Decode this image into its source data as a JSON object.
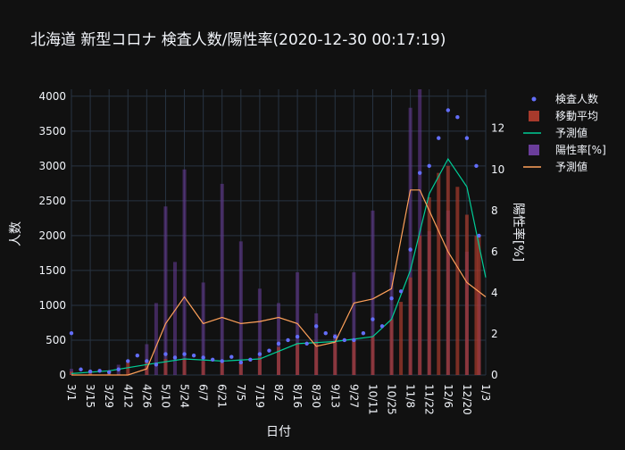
{
  "chart_data": {
    "type": "bar",
    "title": "北海道 新型コロナ 検査人数/陽性率(2020-12-30 00:17:19)",
    "xlabel": "日付",
    "ylabel": "人数",
    "y2label": "陽性率[%]",
    "ylim": [
      0,
      4100
    ],
    "y2lim": [
      0,
      13.9
    ],
    "yticks": [
      0,
      500,
      1000,
      1500,
      2000,
      2500,
      3000,
      3500,
      4000
    ],
    "y2ticks": [
      0,
      2,
      4,
      6,
      8,
      10,
      12
    ],
    "x_start_date": "2020-03-01",
    "x_end_date": "2021-01-03",
    "xticks": [
      "3/1",
      "3/15",
      "3/29",
      "4/12",
      "4/26",
      "5/10",
      "5/24",
      "6/7",
      "6/21",
      "7/5",
      "7/19",
      "8/2",
      "8/16",
      "8/30",
      "9/13",
      "9/27",
      "10/11",
      "10/25",
      "11/8",
      "11/22",
      "12/6",
      "12/20",
      "1/3"
    ],
    "grid": true,
    "legend_position": "right",
    "colors": {
      "test_points": "#636efa",
      "moving_avg": "#a83a2c",
      "fit_tests": "#00cc96",
      "positivity": "#6a3d9a",
      "fit_positivity": "#ffa15a",
      "grid": "#283442",
      "background": "#111111"
    },
    "legend": [
      {
        "label": "検査人数",
        "kind": "marker",
        "color": "#636efa"
      },
      {
        "label": "移動平均",
        "kind": "square",
        "color": "#a83a2c"
      },
      {
        "label": "予測値",
        "kind": "line",
        "color": "#00cc96"
      },
      {
        "label": "陽性率[%]",
        "kind": "square",
        "color": "#6a3d9a"
      },
      {
        "label": "予測値",
        "kind": "line",
        "color": "#ffa15a"
      }
    ],
    "series": [
      {
        "name": "移動平均",
        "type": "bar",
        "axis": "y",
        "x": [
          "2020-03-01",
          "2020-03-15",
          "2020-03-29",
          "2020-04-12",
          "2020-04-26",
          "2020-05-10",
          "2020-05-24",
          "2020-06-07",
          "2020-06-21",
          "2020-07-05",
          "2020-07-19",
          "2020-08-02",
          "2020-08-16",
          "2020-08-30",
          "2020-09-13",
          "2020-09-27",
          "2020-10-11",
          "2020-10-25",
          "2020-11-01",
          "2020-11-08",
          "2020-11-15",
          "2020-11-22",
          "2020-11-29",
          "2020-12-06",
          "2020-12-13",
          "2020-12-20",
          "2020-12-27",
          "2020-12-29"
        ],
        "values": [
          50,
          40,
          60,
          180,
          200,
          230,
          240,
          200,
          190,
          200,
          260,
          400,
          460,
          480,
          470,
          490,
          560,
          800,
          1050,
          1400,
          2000,
          2550,
          2900,
          3000,
          2700,
          2300,
          2000,
          2000
        ]
      },
      {
        "name": "陽性率[%]",
        "type": "bar",
        "axis": "y2",
        "x": [
          "2020-03-01",
          "2020-04-05",
          "2020-04-26",
          "2020-05-03",
          "2020-05-10",
          "2020-05-17",
          "2020-05-24",
          "2020-06-07",
          "2020-06-21",
          "2020-07-05",
          "2020-07-19",
          "2020-08-02",
          "2020-08-16",
          "2020-08-30",
          "2020-09-13",
          "2020-09-27",
          "2020-10-11",
          "2020-10-25",
          "2020-11-08",
          "2020-11-15",
          "2020-11-22",
          "2020-12-06",
          "2020-12-20",
          "2020-12-29"
        ],
        "values": [
          0.3,
          0.5,
          1.5,
          3.5,
          8.2,
          5.5,
          10.0,
          4.5,
          9.3,
          6.5,
          4.2,
          3.5,
          5.0,
          3.0,
          2.0,
          5.0,
          8.0,
          5.0,
          13.0,
          13.9,
          7.0,
          8.0,
          6.0,
          4.0
        ]
      },
      {
        "name": "検査人数",
        "type": "scatter",
        "axis": "y",
        "x": [
          "2020-03-01",
          "2020-03-08",
          "2020-03-15",
          "2020-03-22",
          "2020-03-29",
          "2020-04-05",
          "2020-04-12",
          "2020-04-19",
          "2020-04-26",
          "2020-05-03",
          "2020-05-10",
          "2020-05-17",
          "2020-05-24",
          "2020-05-31",
          "2020-06-07",
          "2020-06-14",
          "2020-06-21",
          "2020-06-28",
          "2020-07-05",
          "2020-07-12",
          "2020-07-19",
          "2020-07-26",
          "2020-08-02",
          "2020-08-09",
          "2020-08-16",
          "2020-08-23",
          "2020-08-30",
          "2020-09-06",
          "2020-09-13",
          "2020-09-20",
          "2020-09-27",
          "2020-10-04",
          "2020-10-11",
          "2020-10-18",
          "2020-10-25",
          "2020-11-01",
          "2020-11-08",
          "2020-11-15",
          "2020-11-22",
          "2020-11-29",
          "2020-12-06",
          "2020-12-13",
          "2020-12-20",
          "2020-12-27",
          "2020-12-29"
        ],
        "values": [
          600,
          80,
          50,
          60,
          40,
          80,
          200,
          280,
          200,
          150,
          300,
          250,
          300,
          280,
          250,
          220,
          200,
          260,
          180,
          220,
          300,
          350,
          450,
          500,
          550,
          450,
          700,
          600,
          550,
          500,
          500,
          600,
          800,
          700,
          1100,
          1200,
          1800,
          2900,
          3000,
          3400,
          3800,
          3700,
          3400,
          3000,
          2000
        ]
      },
      {
        "name": "予測値",
        "type": "line",
        "axis": "y",
        "x": [
          "2020-03-01",
          "2020-03-29",
          "2020-04-26",
          "2020-05-24",
          "2020-06-21",
          "2020-07-19",
          "2020-08-16",
          "2020-09-13",
          "2020-10-11",
          "2020-10-25",
          "2020-11-08",
          "2020-11-22",
          "2020-12-06",
          "2020-12-20",
          "2021-01-03"
        ],
        "values": [
          20,
          60,
          150,
          230,
          200,
          230,
          450,
          480,
          550,
          800,
          1500,
          2600,
          3100,
          2700,
          1400
        ]
      },
      {
        "name": "予測値",
        "type": "line",
        "axis": "y2",
        "x": [
          "2020-03-01",
          "2020-04-12",
          "2020-04-26",
          "2020-05-10",
          "2020-05-24",
          "2020-06-07",
          "2020-06-21",
          "2020-07-05",
          "2020-07-19",
          "2020-08-02",
          "2020-08-16",
          "2020-08-30",
          "2020-09-13",
          "2020-09-27",
          "2020-10-11",
          "2020-10-25",
          "2020-11-08",
          "2020-11-15",
          "2020-11-22",
          "2020-12-06",
          "2020-12-20",
          "2021-01-03"
        ],
        "values": [
          0,
          0,
          0.3,
          2.5,
          3.8,
          2.5,
          2.8,
          2.5,
          2.6,
          2.8,
          2.5,
          1.4,
          1.6,
          3.5,
          3.7,
          4.2,
          9.0,
          9.0,
          8.0,
          6.0,
          4.5,
          3.8
        ]
      }
    ]
  }
}
